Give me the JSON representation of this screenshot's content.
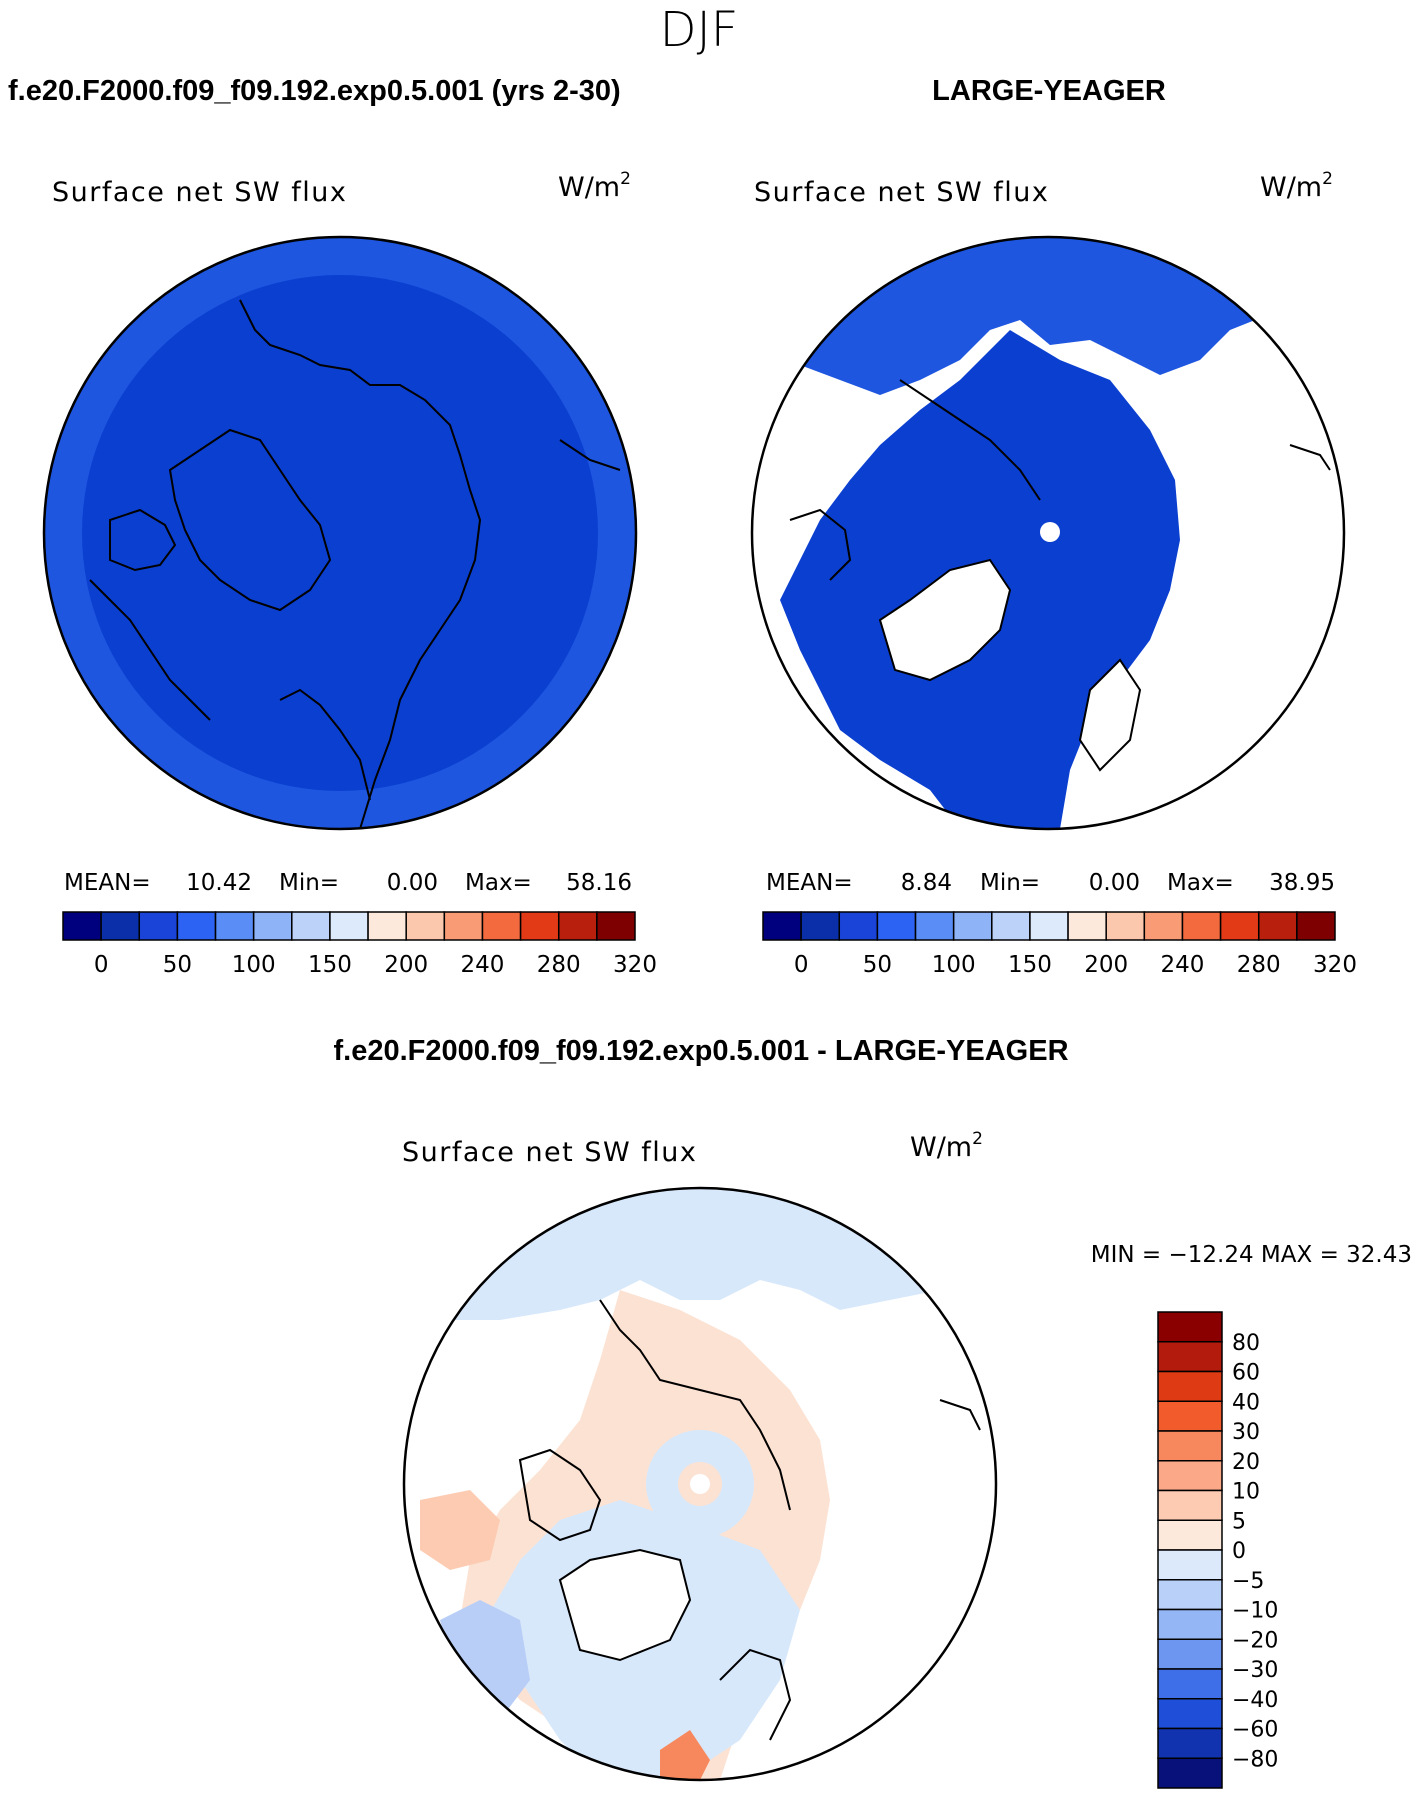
{
  "season_title": "DJF",
  "colors": {
    "panel1_base": "#0b3fd0",
    "panel1_rim": "#1e56e0",
    "panel2_base": "#0b3fd0",
    "diff_bg": "#d8e8fb",
    "diff_pos": "#fce2d2",
    "diff_neg": "#b9cef7"
  },
  "panel_top_left": {
    "case_title": "f.e20.F2000.f09_f09.192.exp0.5.001 (yrs 2-30)",
    "var_title": "Surface net SW flux",
    "units_text": "W/m",
    "units_sup": "2",
    "stats": {
      "mean_label": "MEAN=",
      "mean": "10.42",
      "min_label": "Min=",
      "min": "0.00",
      "max_label": "Max=",
      "max": "58.16"
    }
  },
  "panel_top_right": {
    "case_title": "LARGE-YEAGER",
    "var_title": "Surface net SW flux",
    "units_text": "W/m",
    "units_sup": "2",
    "stats": {
      "mean_label": "MEAN=",
      "mean": "8.84",
      "min_label": "Min=",
      "min": "0.00",
      "max_label": "Max=",
      "max": "38.95"
    }
  },
  "panel_bottom": {
    "case_title": "f.e20.F2000.f09_f09.192.exp0.5.001 - LARGE-YEAGER",
    "var_title": "Surface net SW flux",
    "units_text": "W/m",
    "units_sup": "2",
    "minmax_text": "MIN = −12.24 MAX =   32.43"
  },
  "chart_data": [
    {
      "type": "heatmap",
      "title": "Surface net SW flux",
      "projection": "north polar stereographic",
      "units": "W/m2",
      "stats": {
        "mean": 10.42,
        "min": 0.0,
        "max": 58.16
      },
      "colorbar": {
        "levels": [
          0,
          50,
          100,
          150,
          200,
          240,
          280,
          320
        ],
        "colors": [
          "#00007f",
          "#0a2fa8",
          "#1a44d8",
          "#2d63f2",
          "#5a8df5",
          "#8fb3f7",
          "#bcd2f8",
          "#ddeafb",
          "#fde9dc",
          "#fcc8ad",
          "#f99c76",
          "#f36a3f",
          "#e23a16",
          "#b81f0c",
          "#7f0000"
        ]
      }
    },
    {
      "type": "heatmap",
      "title": "Surface net SW flux",
      "projection": "north polar stereographic",
      "units": "W/m2",
      "stats": {
        "mean": 8.84,
        "min": 0.0,
        "max": 38.95
      },
      "colorbar": {
        "levels": [
          0,
          50,
          100,
          150,
          200,
          240,
          280,
          320
        ],
        "colors": [
          "#00007f",
          "#0a2fa8",
          "#1a44d8",
          "#2d63f2",
          "#5a8df5",
          "#8fb3f7",
          "#bcd2f8",
          "#ddeafb",
          "#fde9dc",
          "#fcc8ad",
          "#f99c76",
          "#f36a3f",
          "#e23a16",
          "#b81f0c",
          "#7f0000"
        ]
      }
    },
    {
      "type": "heatmap",
      "title": "Surface net SW flux",
      "projection": "north polar stereographic",
      "units": "W/m2",
      "stats": {
        "min": -12.24,
        "max": 32.43
      },
      "colorbar": {
        "levels": [
          80,
          60,
          40,
          30,
          20,
          10,
          5,
          0,
          -5,
          -10,
          -20,
          -30,
          -40,
          -60,
          -80
        ],
        "labels": [
          "80",
          "60",
          "40",
          "30",
          "20",
          "10",
          "5",
          "0",
          "−5",
          "−10",
          "−20",
          "−30",
          "−40",
          "−60",
          "−80"
        ],
        "colors": [
          "#8a0000",
          "#b31c0d",
          "#de3b14",
          "#f25b2b",
          "#f7875c",
          "#faa887",
          "#fccbb2",
          "#fde8dc",
          "#dbe9fb",
          "#b9d0f8",
          "#94b6f5",
          "#6c96f0",
          "#3f6fe8",
          "#1f4fd8",
          "#1233b0",
          "#08107a"
        ]
      }
    }
  ]
}
